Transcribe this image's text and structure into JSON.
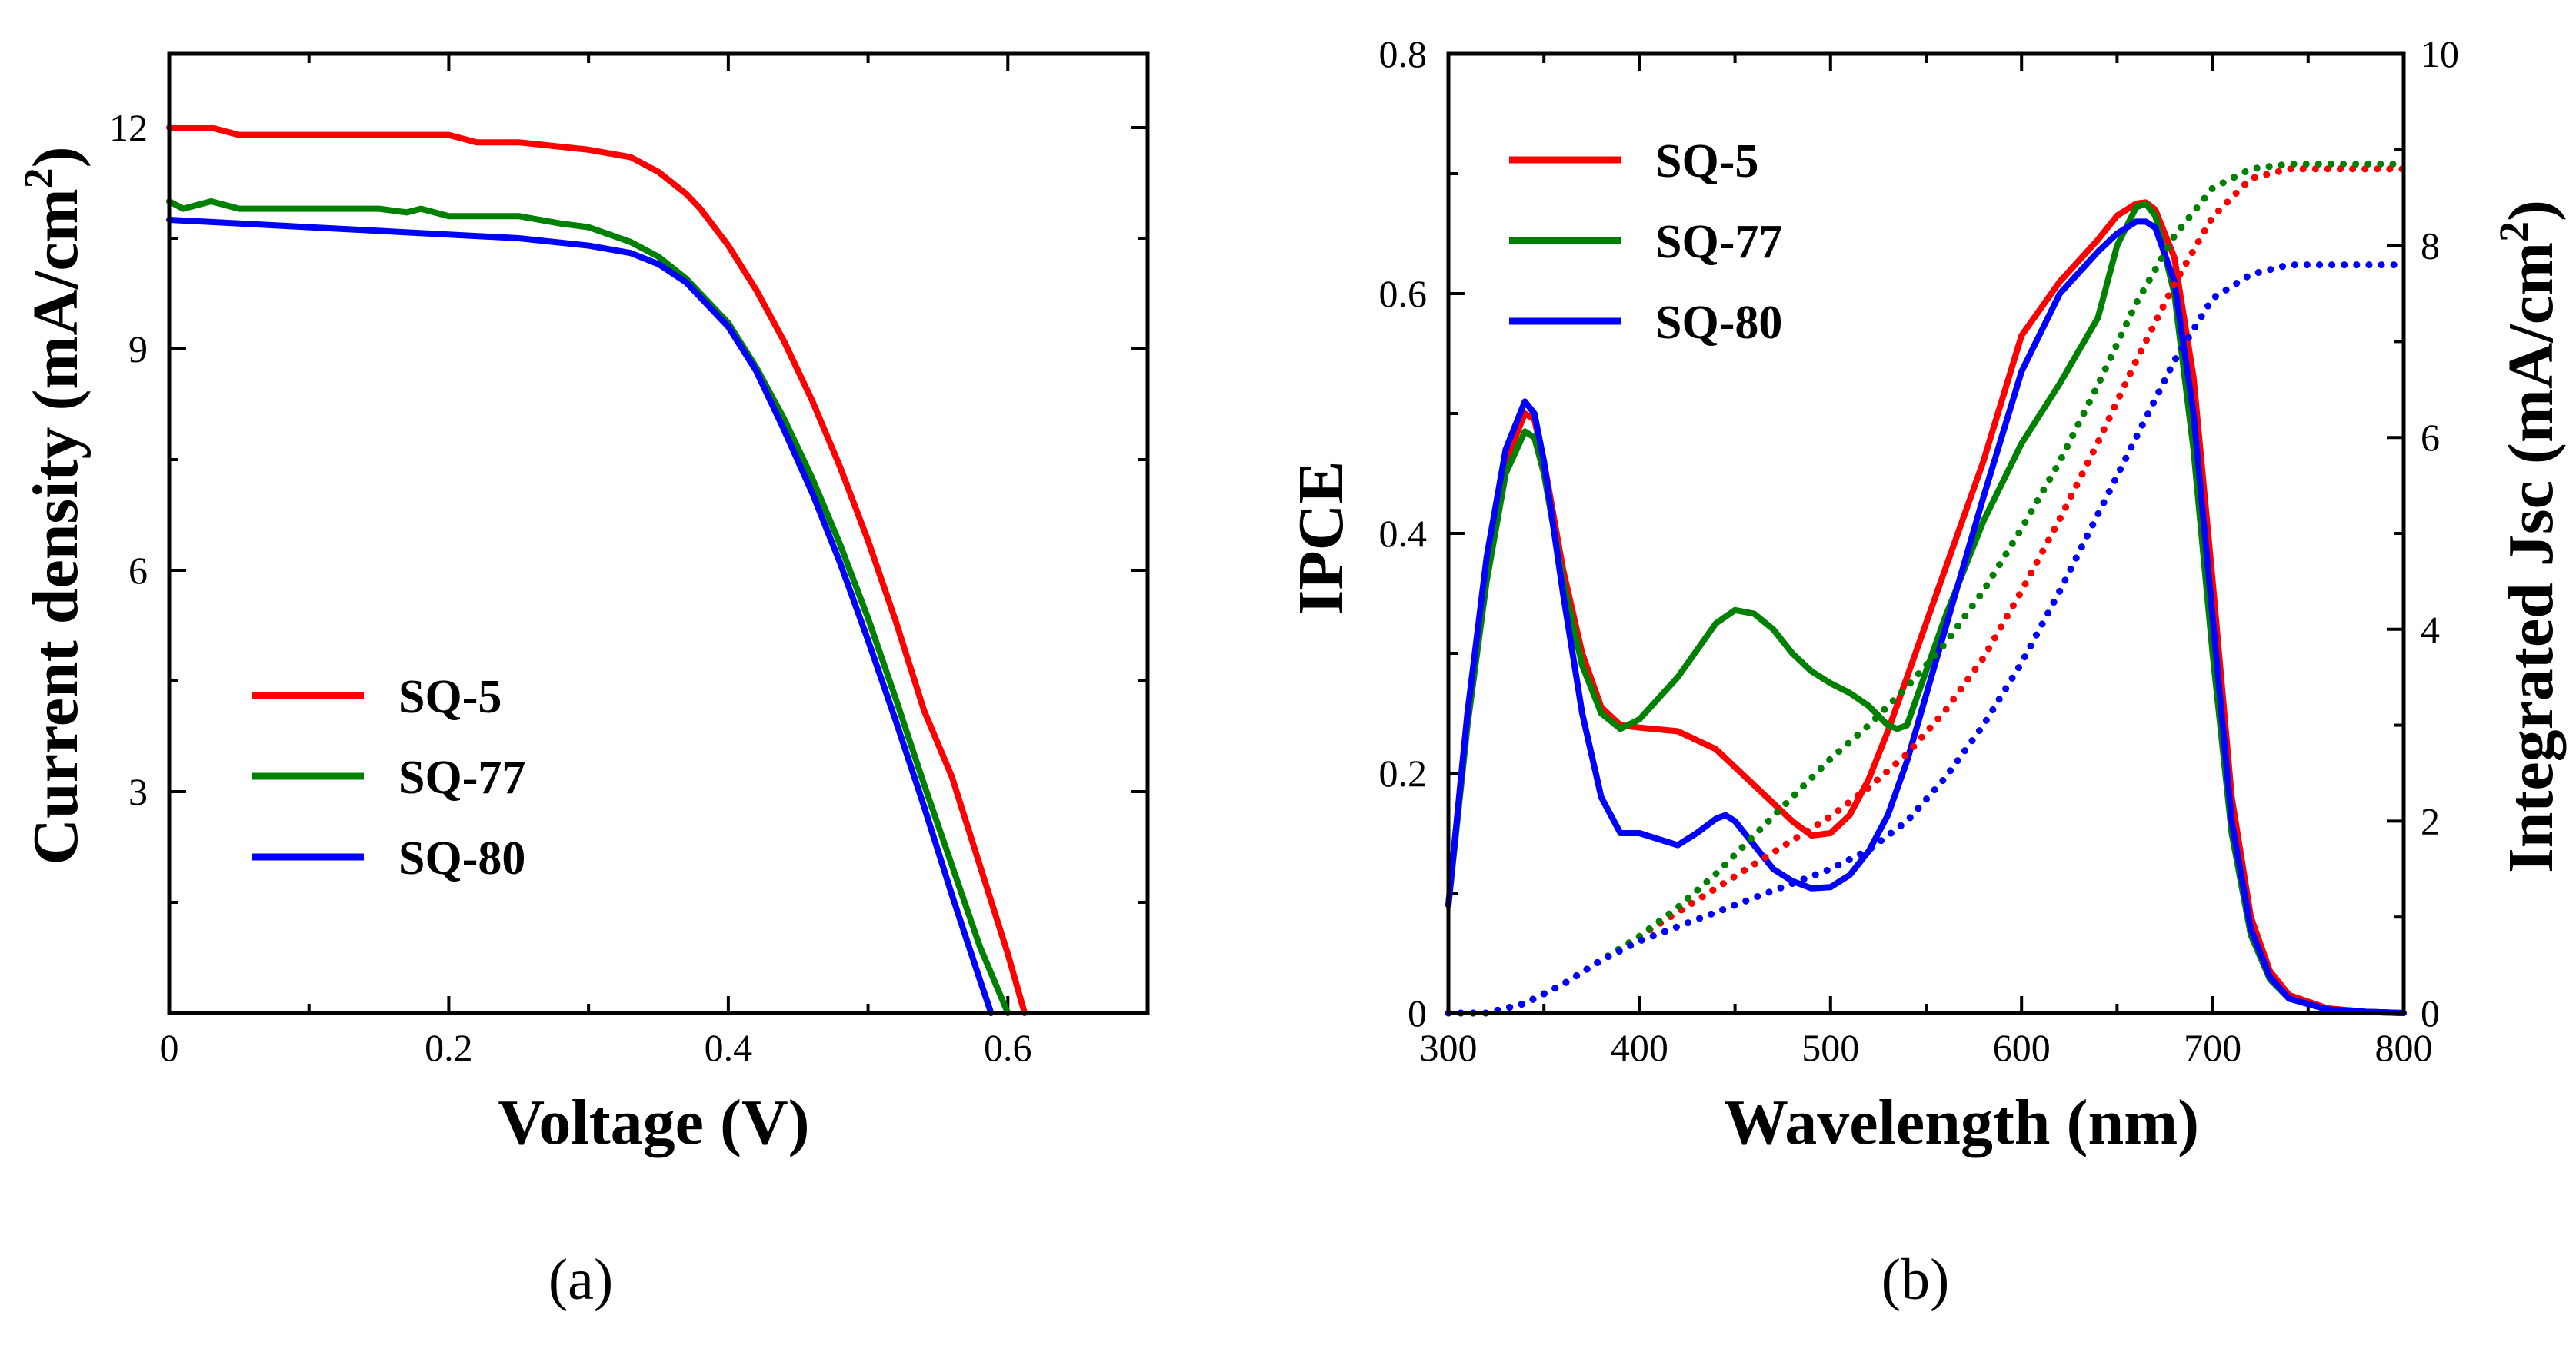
{
  "figure": {
    "caption_a": "(a)",
    "caption_b": "(b)"
  },
  "colors": {
    "SQ-5": "#ff0000",
    "SQ-77": "#008000",
    "SQ-80": "#0000ff"
  },
  "chart_data": [
    {
      "id": "a",
      "type": "line",
      "title": "",
      "xlabel": "Voltage (V)",
      "ylabel": "Current density (mA/cm2)",
      "ylabel_main": "Current density (mA/cm",
      "ylabel_sup": "2",
      "ylabel_tail": ")",
      "xlim": [
        0,
        0.7
      ],
      "ylim": [
        0,
        13
      ],
      "xticks": [
        0,
        0.2,
        0.4,
        0.6
      ],
      "xtick_labels": [
        "0",
        "0.2",
        "0.4",
        "0.6"
      ],
      "yticks": [
        3,
        6,
        9,
        12
      ],
      "ytick_labels": [
        "3",
        "6",
        "9",
        "12"
      ],
      "legend": {
        "placement": "bottom-left",
        "entries": [
          "SQ-5",
          "SQ-77",
          "SQ-80"
        ]
      },
      "series": [
        {
          "name": "SQ-5",
          "x": [
            0,
            0.03,
            0.05,
            0.1,
            0.15,
            0.2,
            0.22,
            0.25,
            0.3,
            0.33,
            0.35,
            0.37,
            0.38,
            0.4,
            0.42,
            0.44,
            0.46,
            0.48,
            0.5,
            0.52,
            0.54,
            0.56,
            0.58,
            0.6,
            0.612
          ],
          "y": [
            12.0,
            12.0,
            11.9,
            11.9,
            11.9,
            11.9,
            11.8,
            11.8,
            11.7,
            11.6,
            11.4,
            11.1,
            10.9,
            10.4,
            9.8,
            9.1,
            8.3,
            7.4,
            6.4,
            5.3,
            4.1,
            3.2,
            2.0,
            0.8,
            0.0
          ]
        },
        {
          "name": "SQ-77",
          "x": [
            0,
            0.01,
            0.02,
            0.03,
            0.05,
            0.1,
            0.15,
            0.17,
            0.18,
            0.19,
            0.2,
            0.25,
            0.28,
            0.3,
            0.33,
            0.35,
            0.37,
            0.4,
            0.42,
            0.44,
            0.46,
            0.48,
            0.5,
            0.52,
            0.54,
            0.56,
            0.58,
            0.6
          ],
          "y": [
            11.0,
            10.9,
            10.95,
            11.0,
            10.9,
            10.9,
            10.9,
            10.85,
            10.9,
            10.85,
            10.8,
            10.8,
            10.7,
            10.65,
            10.45,
            10.25,
            9.95,
            9.35,
            8.75,
            8.05,
            7.25,
            6.35,
            5.35,
            4.25,
            3.1,
            2.0,
            0.9,
            0.0
          ]
        },
        {
          "name": "SQ-80",
          "x": [
            0,
            0.05,
            0.1,
            0.15,
            0.2,
            0.25,
            0.3,
            0.33,
            0.35,
            0.37,
            0.4,
            0.42,
            0.44,
            0.46,
            0.48,
            0.5,
            0.52,
            0.54,
            0.56,
            0.58,
            0.588
          ],
          "y": [
            10.75,
            10.7,
            10.65,
            10.6,
            10.55,
            10.5,
            10.4,
            10.3,
            10.15,
            9.9,
            9.3,
            8.7,
            7.9,
            7.05,
            6.1,
            5.05,
            3.95,
            2.8,
            1.6,
            0.45,
            0.0
          ]
        }
      ]
    },
    {
      "id": "b",
      "type": "line",
      "title": "",
      "xlabel": "Wavelength (nm)",
      "ylabel": "IPCE",
      "ylabel_right": "Integrated Jsc (mA/cm2)",
      "ylabel_right_main": "Integrated Jsc (mA/cm",
      "ylabel_right_sup": "2",
      "ylabel_right_tail": ")",
      "xlim": [
        300,
        800
      ],
      "ylim": [
        0,
        0.8
      ],
      "ylim_right": [
        0,
        10
      ],
      "xticks": [
        300,
        400,
        500,
        600,
        700,
        800
      ],
      "xtick_labels": [
        "300",
        "400",
        "500",
        "600",
        "700",
        "800"
      ],
      "yticks": [
        0,
        0.2,
        0.4,
        0.6,
        0.8
      ],
      "ytick_labels": [
        "0",
        "0.2",
        "0.4",
        "0.6",
        "0.8"
      ],
      "yticks_right": [
        0,
        2,
        4,
        6,
        8,
        10
      ],
      "ytick_labels_right": [
        "0",
        "2",
        "4",
        "6",
        "8",
        "10"
      ],
      "legend": {
        "placement": "top-left",
        "entries": [
          "SQ-5",
          "SQ-77",
          "SQ-80"
        ]
      },
      "series": [
        {
          "name": "SQ-5",
          "axis": "left",
          "style": "solid",
          "x": [
            300,
            310,
            320,
            330,
            340,
            345,
            350,
            360,
            370,
            380,
            390,
            400,
            420,
            440,
            460,
            480,
            490,
            500,
            510,
            520,
            530,
            540,
            560,
            580,
            600,
            620,
            640,
            650,
            660,
            665,
            670,
            680,
            690,
            700,
            710,
            720,
            730,
            740,
            760,
            780,
            800
          ],
          "y": [
            0.09,
            0.25,
            0.37,
            0.46,
            0.5,
            0.495,
            0.46,
            0.37,
            0.3,
            0.255,
            0.24,
            0.238,
            0.235,
            0.22,
            0.19,
            0.16,
            0.148,
            0.15,
            0.165,
            0.195,
            0.235,
            0.28,
            0.37,
            0.46,
            0.565,
            0.61,
            0.645,
            0.665,
            0.675,
            0.676,
            0.67,
            0.63,
            0.53,
            0.36,
            0.18,
            0.08,
            0.035,
            0.015,
            0.004,
            0.001,
            0.0
          ]
        },
        {
          "name": "SQ-77",
          "axis": "left",
          "style": "solid",
          "x": [
            300,
            310,
            320,
            330,
            340,
            345,
            350,
            360,
            370,
            380,
            390,
            400,
            420,
            440,
            450,
            460,
            470,
            480,
            490,
            500,
            510,
            520,
            530,
            535,
            540,
            560,
            580,
            600,
            620,
            640,
            650,
            660,
            665,
            670,
            680,
            690,
            700,
            710,
            720,
            730,
            740,
            760,
            780,
            800
          ],
          "y": [
            0.09,
            0.24,
            0.36,
            0.45,
            0.485,
            0.48,
            0.45,
            0.36,
            0.29,
            0.25,
            0.237,
            0.245,
            0.28,
            0.325,
            0.336,
            0.333,
            0.32,
            0.3,
            0.285,
            0.275,
            0.267,
            0.256,
            0.24,
            0.237,
            0.24,
            0.33,
            0.41,
            0.475,
            0.525,
            0.58,
            0.64,
            0.672,
            0.675,
            0.665,
            0.6,
            0.47,
            0.3,
            0.15,
            0.065,
            0.028,
            0.012,
            0.003,
            0.001,
            0.0
          ]
        },
        {
          "name": "SQ-80",
          "axis": "left",
          "style": "solid",
          "x": [
            300,
            310,
            320,
            330,
            340,
            345,
            350,
            360,
            370,
            380,
            390,
            400,
            410,
            420,
            430,
            440,
            445,
            450,
            460,
            470,
            480,
            490,
            500,
            510,
            520,
            530,
            540,
            560,
            580,
            600,
            620,
            640,
            650,
            660,
            665,
            670,
            680,
            690,
            700,
            710,
            720,
            730,
            740,
            760,
            780,
            800
          ],
          "y": [
            0.09,
            0.25,
            0.38,
            0.47,
            0.51,
            0.5,
            0.46,
            0.35,
            0.25,
            0.18,
            0.15,
            0.15,
            0.145,
            0.14,
            0.15,
            0.162,
            0.165,
            0.16,
            0.14,
            0.12,
            0.11,
            0.104,
            0.105,
            0.115,
            0.135,
            0.165,
            0.21,
            0.32,
            0.43,
            0.535,
            0.6,
            0.635,
            0.65,
            0.66,
            0.66,
            0.655,
            0.61,
            0.5,
            0.33,
            0.16,
            0.07,
            0.03,
            0.012,
            0.003,
            0.001,
            0.0
          ]
        },
        {
          "name": "SQ-5 Integrated Jsc",
          "axis": "right",
          "style": "dotted",
          "x": [
            300,
            320,
            340,
            360,
            380,
            400,
            420,
            440,
            460,
            480,
            500,
            520,
            540,
            560,
            580,
            600,
            620,
            640,
            660,
            680,
            700,
            720,
            740,
            760,
            780,
            800
          ],
          "y": [
            0.0,
            0.0,
            0.1,
            0.3,
            0.55,
            0.8,
            1.05,
            1.3,
            1.55,
            1.8,
            2.05,
            2.35,
            2.7,
            3.15,
            3.7,
            4.4,
            5.15,
            5.95,
            6.8,
            7.6,
            8.3,
            8.7,
            8.8,
            8.8,
            8.8,
            8.8
          ]
        },
        {
          "name": "SQ-77 Integrated Jsc",
          "axis": "right",
          "style": "dotted",
          "x": [
            300,
            320,
            340,
            360,
            380,
            400,
            420,
            440,
            460,
            480,
            500,
            520,
            540,
            560,
            580,
            600,
            620,
            640,
            660,
            680,
            700,
            720,
            740,
            760,
            780,
            800
          ],
          "y": [
            0.0,
            0.0,
            0.1,
            0.3,
            0.55,
            0.8,
            1.1,
            1.45,
            1.85,
            2.25,
            2.65,
            3.0,
            3.4,
            3.85,
            4.4,
            5.05,
            5.75,
            6.55,
            7.4,
            8.1,
            8.6,
            8.8,
            8.85,
            8.85,
            8.85,
            8.85
          ]
        },
        {
          "name": "SQ-80 Integrated Jsc",
          "axis": "right",
          "style": "dotted",
          "x": [
            300,
            320,
            340,
            360,
            380,
            400,
            420,
            440,
            460,
            480,
            500,
            520,
            540,
            560,
            580,
            600,
            620,
            640,
            660,
            680,
            700,
            720,
            740,
            760,
            780,
            800
          ],
          "y": [
            0.0,
            0.0,
            0.1,
            0.3,
            0.55,
            0.75,
            0.9,
            1.05,
            1.2,
            1.35,
            1.5,
            1.7,
            2.0,
            2.45,
            3.0,
            3.65,
            4.4,
            5.2,
            6.0,
            6.8,
            7.45,
            7.7,
            7.8,
            7.8,
            7.8,
            7.8
          ]
        }
      ]
    }
  ]
}
